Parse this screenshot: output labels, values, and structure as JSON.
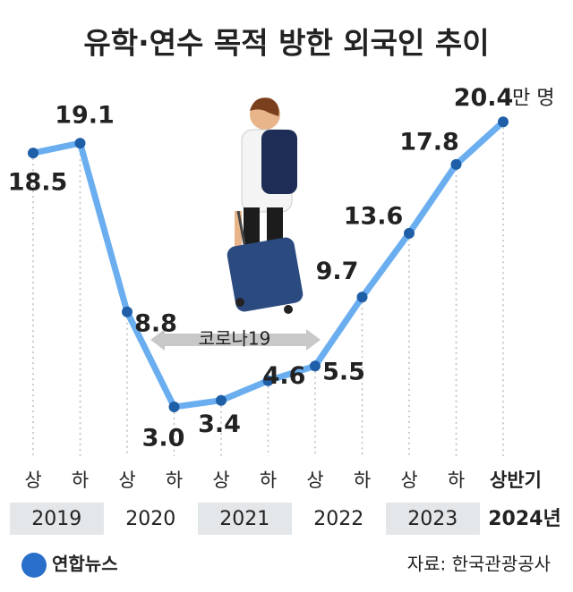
{
  "chart_data": {
    "type": "line",
    "title": "유학·연수 목적 방한 외국인 추이",
    "categories": [
      "상",
      "하",
      "상",
      "하",
      "상",
      "하",
      "상",
      "하",
      "상",
      "하",
      "상반기"
    ],
    "years": [
      "2019",
      "2020",
      "2021",
      "2022",
      "2023",
      "2024년"
    ],
    "series": [
      {
        "name": "유학·연수 목적 방한 외국인",
        "color": "#6aaef0",
        "values": [
          18.5,
          19.1,
          8.8,
          3.0,
          3.4,
          4.6,
          5.5,
          9.7,
          13.6,
          17.8,
          20.4
        ],
        "value_labels": [
          "18.5",
          "19.1",
          "8.8",
          "3.0",
          "3.4",
          "4.6",
          "5.5",
          "9.7",
          "13.6",
          "17.8",
          "20.4"
        ]
      }
    ],
    "unit": "만 명",
    "annotation": "코로나19",
    "source": "자료: 한국관광공사",
    "logo": "연합뉴스"
  }
}
